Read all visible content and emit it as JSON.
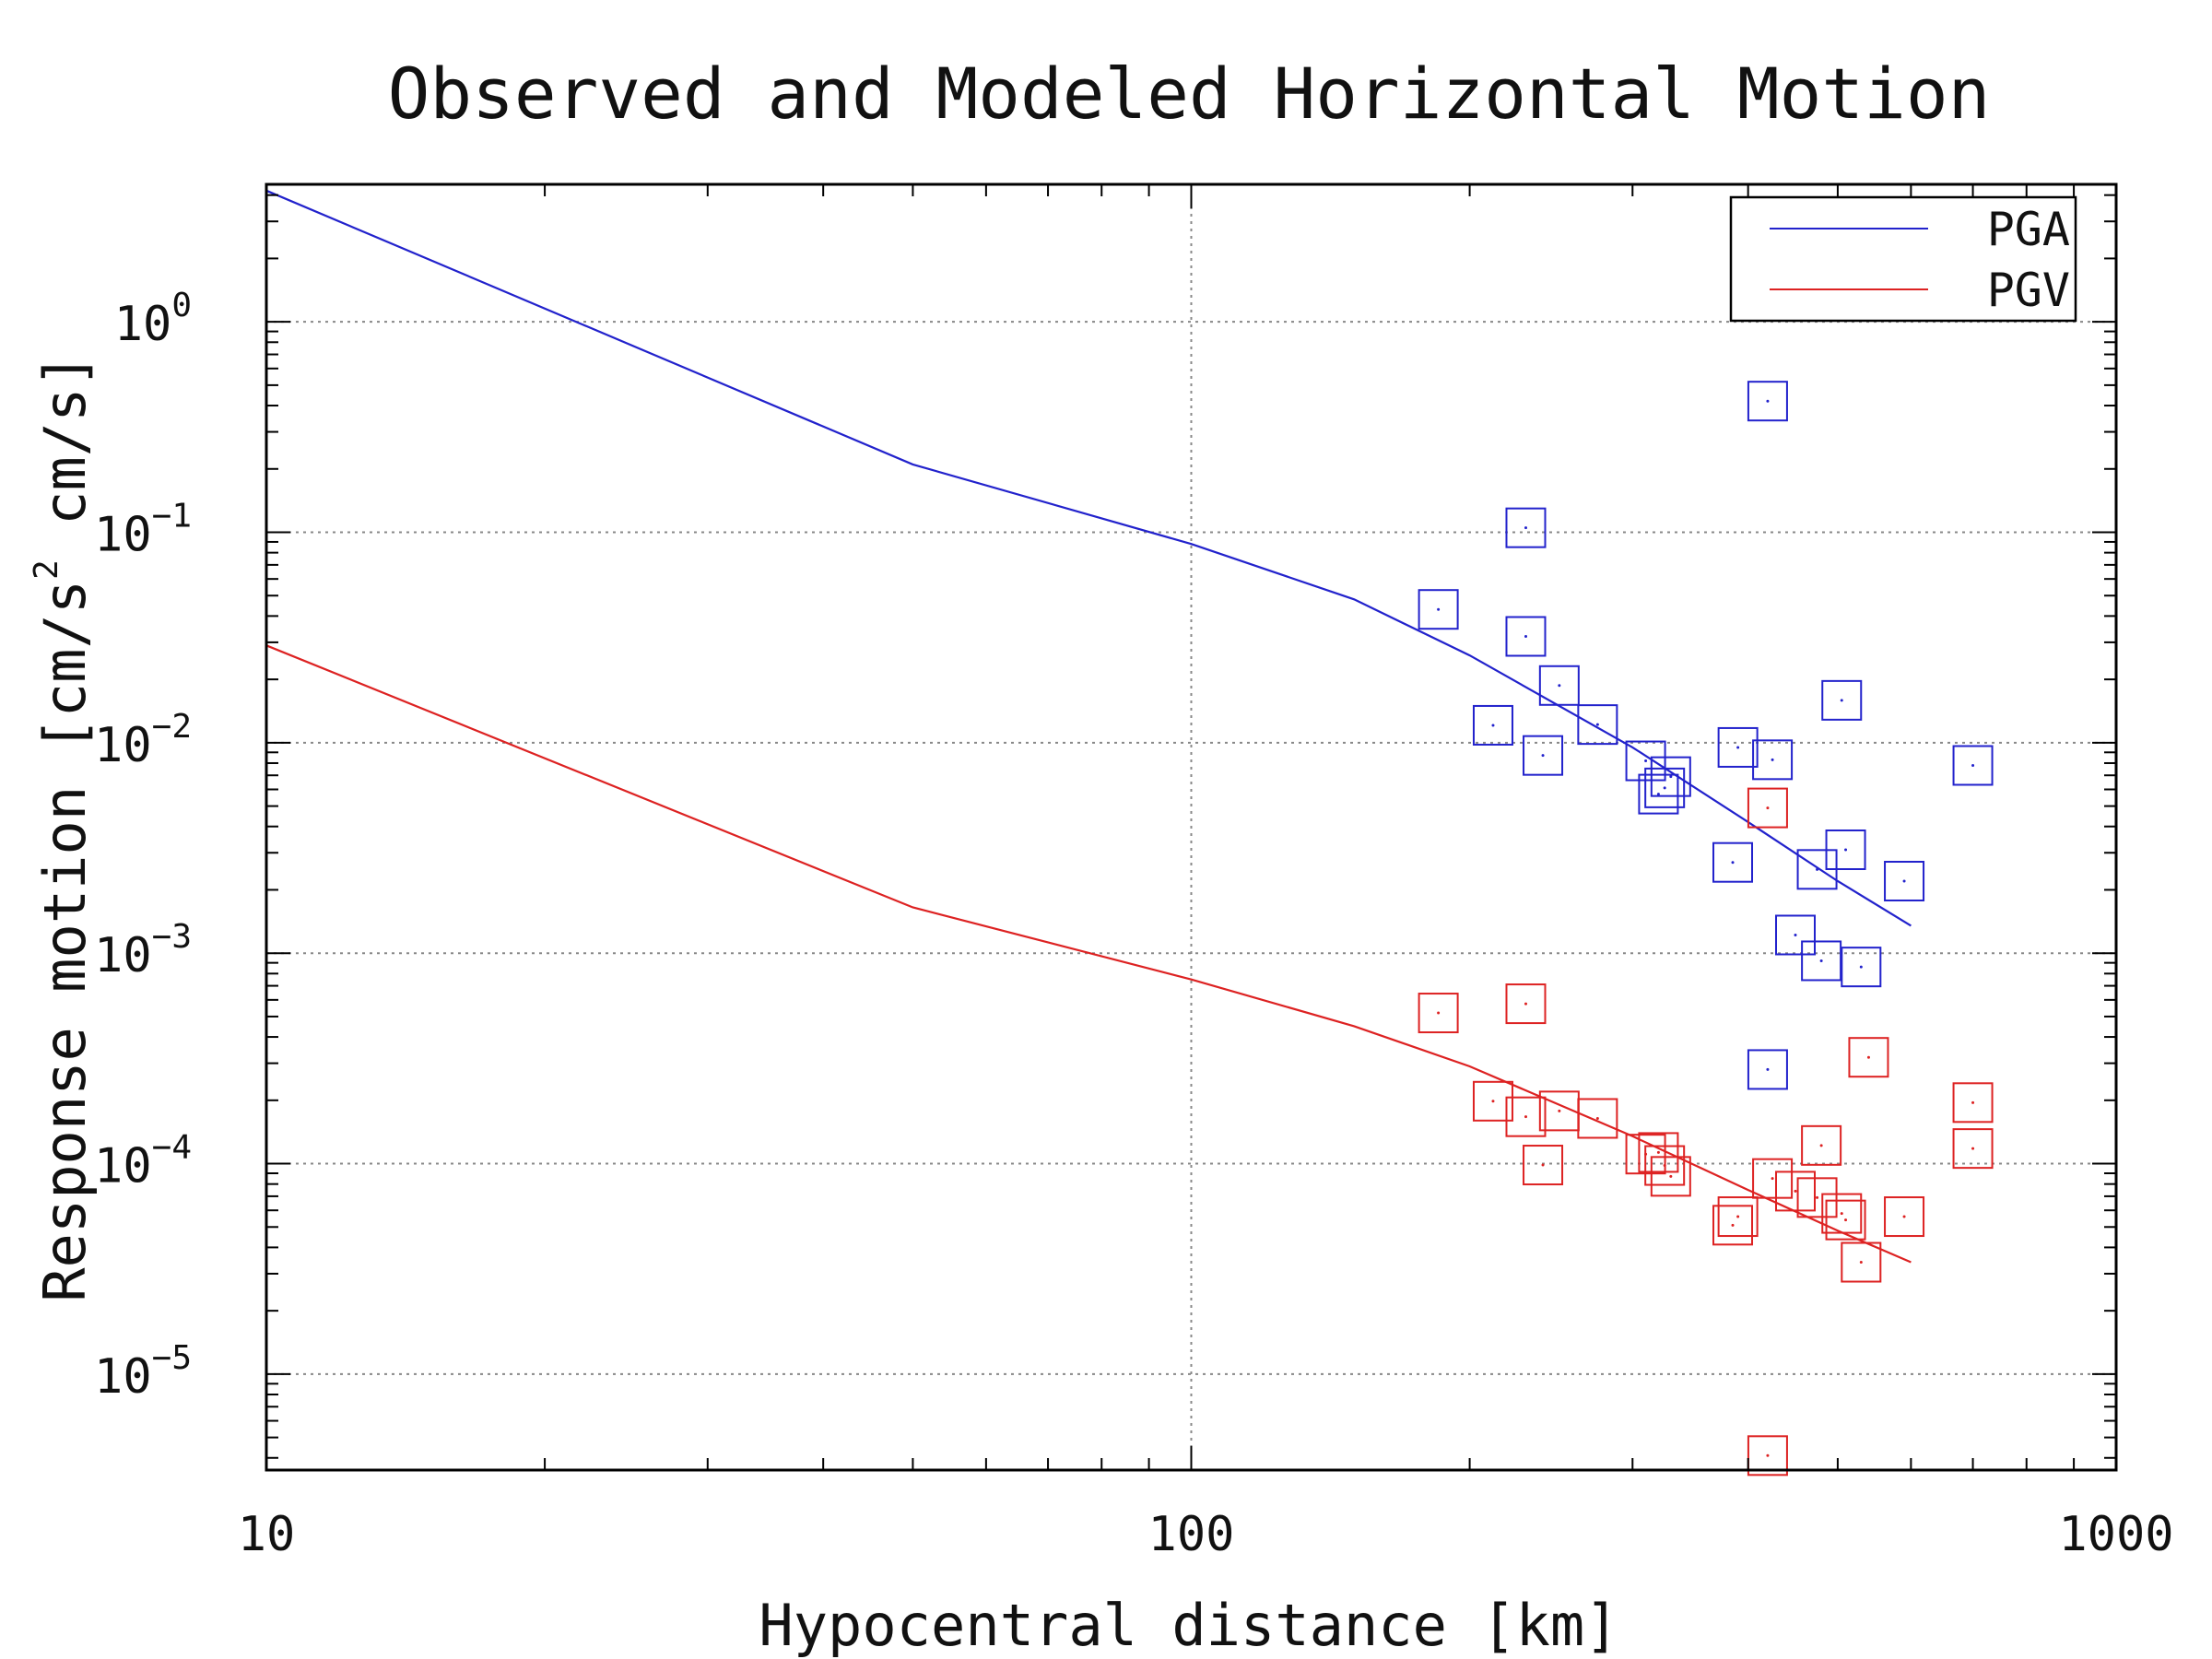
{
  "chart_data": {
    "type": "scatter",
    "title": "Observed and Modeled Horizontal Motion",
    "xlabel": "Hypocentral distance [km]",
    "ylabel": {
      "before": "Response motion  [cm/s",
      "sup": "2",
      "after": "  cm/s]"
    },
    "x_scale": "log",
    "y_scale": "log",
    "xlim": [
      10,
      1000
    ],
    "ylim": [
      3.5e-06,
      4.5
    ],
    "x_ticks": [
      {
        "value": 10,
        "label": "10"
      },
      {
        "value": 100,
        "label": "100"
      },
      {
        "value": 1000,
        "label": "1000"
      }
    ],
    "y_ticks": [
      {
        "value": 1,
        "base": "10",
        "exp": "0"
      },
      {
        "value": 0.1,
        "base": "10",
        "exp": "−1"
      },
      {
        "value": 0.01,
        "base": "10",
        "exp": "−2"
      },
      {
        "value": 0.001,
        "base": "10",
        "exp": "−3"
      },
      {
        "value": 0.0001,
        "base": "10",
        "exp": "−4"
      },
      {
        "value": 1e-05,
        "base": "10",
        "exp": "−5"
      }
    ],
    "grid": true,
    "legend": {
      "position": "top-right",
      "entries": [
        "PGA",
        "PGV"
      ]
    },
    "colors": {
      "PGA": "#2222cc",
      "PGV": "#dd2222",
      "grid": "#888888",
      "axis": "#000000"
    },
    "series": [
      {
        "name": "PGA",
        "kind": "line",
        "x": [
          10,
          50,
          100,
          150,
          200,
          300,
          400,
          500,
          600
        ],
        "y": [
          4.2,
          0.21,
          0.088,
          0.048,
          0.026,
          0.0095,
          0.0042,
          0.0022,
          0.00135
        ]
      },
      {
        "name": "PGV",
        "kind": "line",
        "x": [
          10,
          50,
          100,
          150,
          200,
          300,
          400,
          500,
          600
        ],
        "y": [
          0.029,
          0.00165,
          0.00075,
          0.00045,
          0.00029,
          0.000135,
          7.5e-05,
          4.8e-05,
          3.4e-05
        ]
      },
      {
        "name": "PGA",
        "kind": "markers",
        "x": [
          185,
          212,
          230,
          230,
          240,
          250,
          275,
          310,
          320,
          325,
          330,
          385,
          390,
          420,
          425,
          450,
          475,
          480,
          505,
          510,
          530,
          590,
          700
        ],
        "y": [
          0.043,
          0.0121,
          0.105,
          0.032,
          0.0087,
          0.0187,
          0.0122,
          0.0082,
          0.0057,
          0.0061,
          0.0069,
          0.0027,
          0.0095,
          0.42,
          0.0083,
          0.00122,
          0.0025,
          0.00092,
          0.0159,
          0.0031,
          0.00086,
          0.0022,
          0.0078
        ]
      },
      {
        "name": "PGV",
        "kind": "markers",
        "x": [
          185,
          212,
          230,
          230,
          240,
          250,
          275,
          310,
          320,
          325,
          330,
          385,
          390,
          420,
          425,
          450,
          475,
          480,
          505,
          510,
          530,
          590,
          700
        ],
        "y": [
          0.00052,
          0.000198,
          0.000575,
          0.000167,
          9.85e-05,
          0.000178,
          0.000164,
          0.000111,
          0.000113,
          9.8e-05,
          8.7e-05,
          5.1e-05,
          5.6e-05,
          4.1e-06,
          8.5e-05,
          7.4e-05,
          6.9e-05,
          0.000122,
          5.8e-05,
          5.4e-05,
          3.4e-05,
          5.6e-05,
          0.000195
        ]
      }
    ],
    "extra_markers": [
      {
        "series": "PGA",
        "x": 420,
        "y": 0.00028
      },
      {
        "series": "PGV",
        "x": 420,
        "y": 0.0049
      },
      {
        "series": "PGV",
        "x": 540,
        "y": 0.00032
      },
      {
        "series": "PGV",
        "x": 700,
        "y": 0.000118
      }
    ]
  }
}
